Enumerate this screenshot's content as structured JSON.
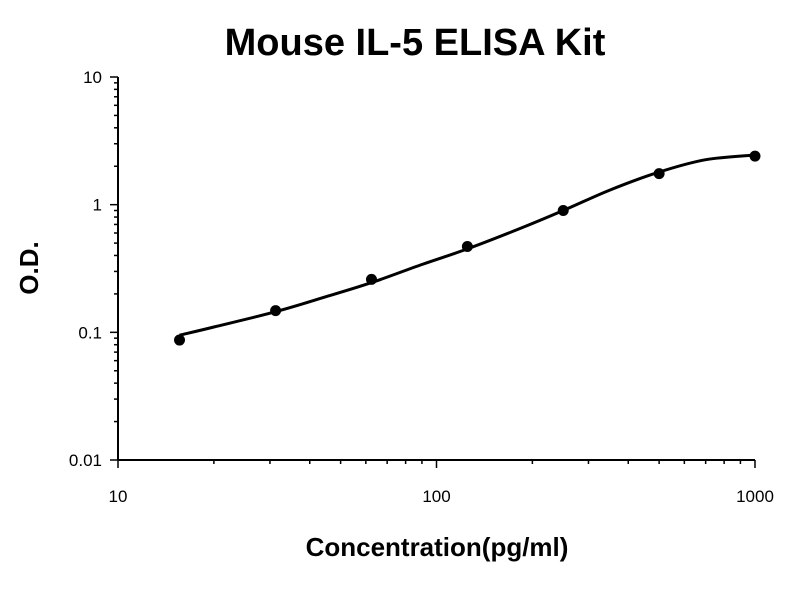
{
  "chart_data": {
    "type": "scatter",
    "title": "Mouse IL-5 ELISA Kit",
    "xlabel": "Concentration(pg/ml)",
    "ylabel": "O.D.",
    "x_scale": "log",
    "y_scale": "log",
    "xlim": [
      10,
      1000
    ],
    "ylim": [
      0.01,
      10
    ],
    "x_ticks": [
      {
        "value": 10,
        "label": "10"
      },
      {
        "value": 100,
        "label": "100"
      },
      {
        "value": 1000,
        "label": "1000"
      }
    ],
    "y_ticks": [
      {
        "value": 0.01,
        "label": "0.01"
      },
      {
        "value": 0.1,
        "label": "0.1"
      },
      {
        "value": 1,
        "label": "1"
      },
      {
        "value": 10,
        "label": "10"
      }
    ],
    "grid": false,
    "series": [
      {
        "x": [
          15.6,
          31.25,
          62.5,
          125,
          250,
          500,
          1000
        ],
        "y": [
          0.087,
          0.148,
          0.26,
          0.47,
          0.9,
          1.75,
          2.4
        ]
      }
    ],
    "fit_curve": {
      "x": [
        15.6,
        20,
        31.25,
        45,
        62.5,
        90,
        125,
        180,
        250,
        350,
        500,
        700,
        1000
      ],
      "y": [
        0.095,
        0.11,
        0.145,
        0.19,
        0.245,
        0.34,
        0.45,
        0.64,
        0.9,
        1.3,
        1.8,
        2.25,
        2.45
      ]
    }
  }
}
